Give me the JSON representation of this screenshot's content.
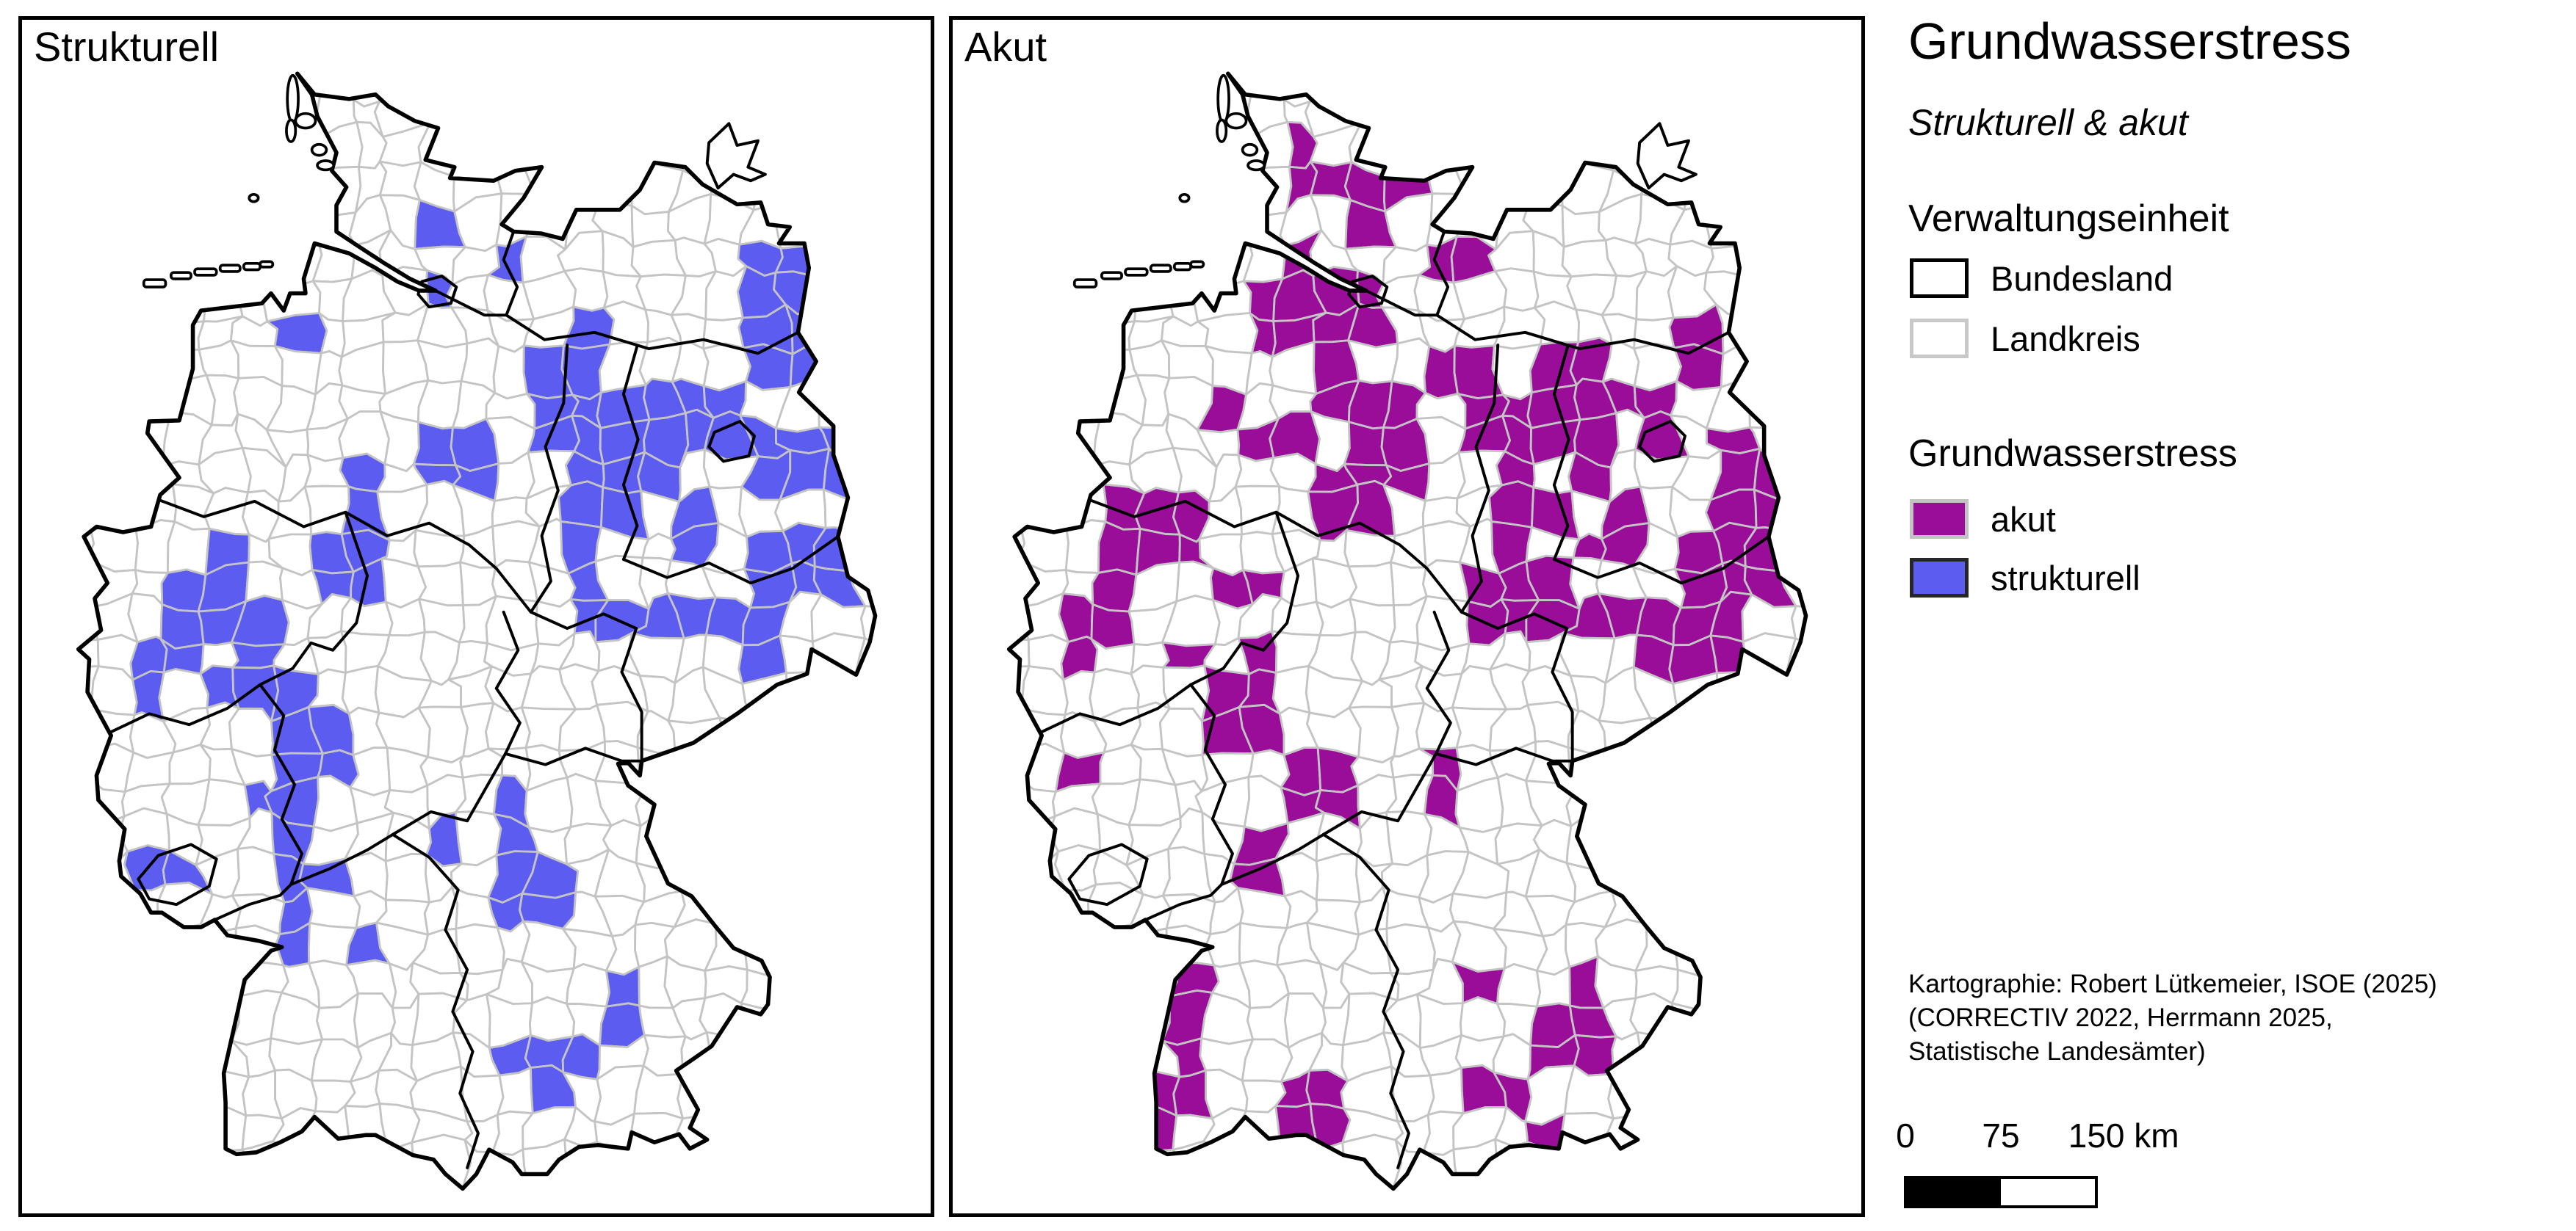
{
  "panels": [
    {
      "id": "strukturell",
      "label": "Strukturell",
      "stress_color": "#5c5cf0",
      "clusters": [
        [
          398,
          96,
          13,
          11
        ],
        [
          470,
          230,
          14,
          12
        ],
        [
          455,
          296,
          26,
          20
        ],
        [
          300,
          355,
          16,
          13
        ],
        [
          272,
          395,
          12,
          10
        ],
        [
          480,
          350,
          20,
          16
        ],
        [
          525,
          265,
          20,
          18
        ],
        [
          610,
          330,
          16,
          13
        ],
        [
          840,
          320,
          48,
          95
        ],
        [
          600,
          390,
          35,
          25
        ],
        [
          720,
          430,
          75,
          45
        ],
        [
          860,
          480,
          55,
          60
        ],
        [
          781,
          462,
          34,
          26
        ],
        [
          690,
          480,
          45,
          35
        ],
        [
          610,
          460,
          40,
          45
        ],
        [
          620,
          540,
          45,
          40
        ],
        [
          740,
          540,
          55,
          40
        ],
        [
          850,
          600,
          60,
          55
        ],
        [
          650,
          640,
          45,
          45
        ],
        [
          720,
          650,
          40,
          35
        ],
        [
          800,
          680,
          35,
          30
        ],
        [
          470,
          480,
          45,
          40
        ],
        [
          390,
          520,
          35,
          40
        ],
        [
          360,
          590,
          35,
          35
        ],
        [
          210,
          620,
          35,
          40
        ],
        [
          250,
          670,
          40,
          45
        ],
        [
          180,
          680,
          30,
          35
        ],
        [
          150,
          720,
          25,
          30
        ],
        [
          230,
          730,
          30,
          30
        ],
        [
          290,
          740,
          40,
          35
        ],
        [
          330,
          800,
          45,
          40
        ],
        [
          290,
          860,
          35,
          45
        ],
        [
          300,
          930,
          30,
          45
        ],
        [
          170,
          930,
          35,
          30
        ],
        [
          300,
          990,
          20,
          35
        ],
        [
          330,
          950,
          15,
          13
        ],
        [
          450,
          890,
          22,
          20
        ],
        [
          560,
          940,
          30,
          75
        ],
        [
          540,
          860,
          15,
          13
        ],
        [
          600,
          1140,
          40,
          30
        ],
        [
          570,
          1180,
          15,
          35
        ],
        [
          545,
          1120,
          18,
          25
        ],
        [
          660,
          1080,
          22,
          45
        ],
        [
          640,
          1000,
          14,
          12
        ],
        [
          250,
          1160,
          18,
          14
        ],
        [
          265,
          1080,
          12,
          16
        ],
        [
          380,
          1020,
          14,
          12
        ],
        [
          470,
          1100,
          13,
          11
        ],
        [
          650,
          880,
          12,
          10
        ]
      ],
      "holes": [
        [
          770,
          520,
          26,
          20
        ],
        [
          700,
          560,
          24,
          18
        ],
        [
          800,
          420,
          22,
          18
        ],
        [
          680,
          610,
          24,
          18
        ],
        [
          580,
          500,
          20,
          16
        ]
      ]
    },
    {
      "id": "akut",
      "label": "Akut",
      "stress_color": "#990d99",
      "clusters": [
        [
          390,
          170,
          26,
          35
        ],
        [
          450,
          220,
          30,
          35
        ],
        [
          500,
          160,
          22,
          28
        ],
        [
          520,
          110,
          14,
          12
        ],
        [
          400,
          300,
          45,
          45
        ],
        [
          460,
          330,
          40,
          42
        ],
        [
          360,
          330,
          35,
          40
        ],
        [
          420,
          390,
          40,
          45
        ],
        [
          470,
          450,
          45,
          55
        ],
        [
          280,
          420,
          24,
          44
        ],
        [
          430,
          520,
          34,
          40
        ],
        [
          350,
          470,
          30,
          30
        ],
        [
          560,
          250,
          38,
          30
        ],
        [
          560,
          380,
          35,
          30
        ],
        [
          680,
          400,
          55,
          38
        ],
        [
          760,
          420,
          45,
          40
        ],
        [
          820,
          360,
          35,
          45
        ],
        [
          860,
          500,
          45,
          55
        ],
        [
          781,
          462,
          34,
          26
        ],
        [
          700,
          480,
          45,
          45
        ],
        [
          600,
          440,
          38,
          42
        ],
        [
          620,
          540,
          45,
          50
        ],
        [
          730,
          545,
          50,
          42
        ],
        [
          850,
          620,
          50,
          55
        ],
        [
          880,
          560,
          35,
          35
        ],
        [
          650,
          650,
          42,
          50
        ],
        [
          720,
          660,
          38,
          35
        ],
        [
          790,
          690,
          35,
          32
        ],
        [
          860,
          690,
          28,
          30
        ],
        [
          600,
          640,
          35,
          40
        ],
        [
          480,
          480,
          35,
          35
        ],
        [
          200,
          560,
          45,
          35
        ],
        [
          170,
          640,
          33,
          40
        ],
        [
          240,
          690,
          24,
          30
        ],
        [
          135,
          690,
          15,
          13
        ],
        [
          320,
          620,
          28,
          32
        ],
        [
          350,
          700,
          24,
          30
        ],
        [
          330,
          760,
          55,
          50
        ],
        [
          390,
          840,
          50,
          55
        ],
        [
          330,
          920,
          38,
          45
        ],
        [
          150,
          820,
          28,
          25
        ],
        [
          120,
          880,
          24,
          22
        ],
        [
          250,
          1080,
          24,
          80
        ],
        [
          245,
          1180,
          22,
          55
        ],
        [
          230,
          1230,
          28,
          20
        ],
        [
          390,
          1200,
          40,
          35
        ],
        [
          360,
          1240,
          30,
          25
        ],
        [
          590,
          1050,
          26,
          24
        ],
        [
          600,
          1180,
          22,
          40
        ],
        [
          680,
          1120,
          36,
          30
        ],
        [
          700,
          1060,
          11,
          10
        ],
        [
          660,
          1230,
          11,
          10
        ],
        [
          540,
          830,
          24,
          38
        ],
        [
          260,
          560,
          24,
          26
        ]
      ],
      "holes": [
        [
          820,
          480,
          22,
          18
        ],
        [
          700,
          530,
          22,
          18
        ],
        [
          640,
          580,
          20,
          16
        ],
        [
          500,
          400,
          18,
          15
        ],
        [
          760,
          600,
          20,
          16
        ],
        [
          360,
          760,
          18,
          15
        ]
      ]
    }
  ],
  "legend": {
    "title": "Grundwasserstress",
    "subtitle": "Strukturell & akut",
    "admin_section": {
      "title": "Verwaltungseinheit",
      "items": [
        {
          "label": "Bundesland",
          "fill": "#ffffff",
          "border": "#000000"
        },
        {
          "label": "Landkreis",
          "fill": "#ffffff",
          "border": "#c8c8c8"
        }
      ]
    },
    "stress_section": {
      "title": "Grundwasserstress",
      "items": [
        {
          "label": "akut",
          "fill": "#990d99",
          "border": "#c2c2c2"
        },
        {
          "label": "strukturell",
          "fill": "#5c5cf0",
          "border": "#262626"
        }
      ]
    },
    "attribution": [
      "Kartographie: Robert Lütkemeier, ISOE (2025)",
      "(CORRECTIV 2022, Herrmann 2025,",
      "Statistische Landesämter)"
    ],
    "scalebar": {
      "labels": [
        "0",
        "75",
        "150 km"
      ],
      "segments": 2
    }
  },
  "map_colors": {
    "background": "#ffffff",
    "bundesland_border": "#000000",
    "landkreis_border": "#c4c4c4"
  }
}
